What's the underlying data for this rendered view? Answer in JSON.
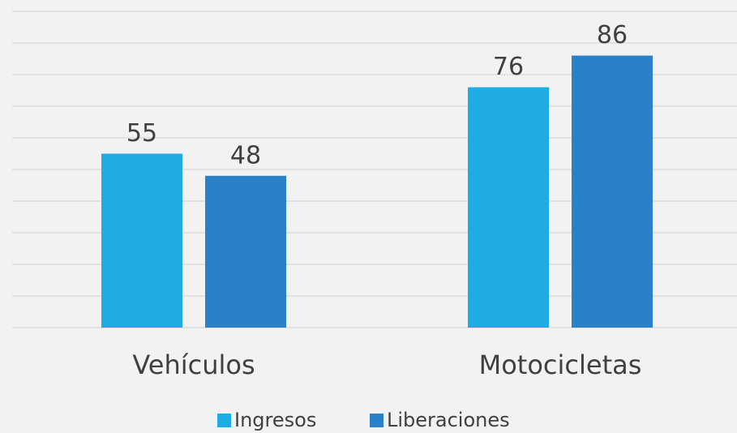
{
  "chart_data": {
    "type": "bar",
    "categories": [
      "Vehículos",
      "Motocicletas"
    ],
    "series": [
      {
        "name": "Ingresos",
        "color": "#1fabe3",
        "values": [
          55,
          76
        ]
      },
      {
        "name": "Liberaciones",
        "color": "#2a80c9",
        "values": [
          48,
          86
        ]
      }
    ],
    "ylim": [
      0,
      100
    ],
    "yticks": [
      0,
      10,
      20,
      30,
      40,
      50,
      60,
      70,
      80,
      90,
      100
    ],
    "grid": true,
    "legend": "bottom"
  }
}
